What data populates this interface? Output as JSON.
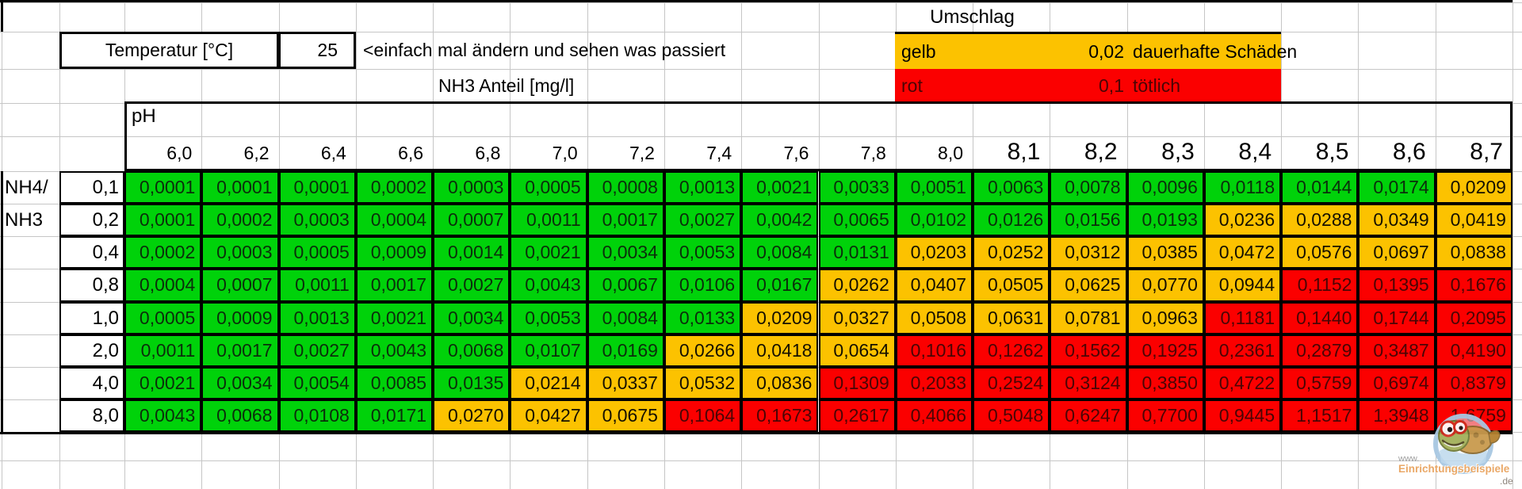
{
  "sheet": {
    "umschlag": {
      "title": "Umschlag"
    },
    "temperatur": {
      "label": "Temperatur [°C]",
      "value": "25"
    },
    "hint": "<einfach mal ändern und sehen was passiert",
    "nh3_anteil_label": "NH3 Anteil [mg/l]",
    "legend": {
      "rows": [
        {
          "name": "gelb",
          "threshold": "0,02",
          "meaning": "dauerhafte Schäden",
          "color": "#FCC200"
        },
        {
          "name": "rot",
          "threshold": "0,1",
          "meaning": "tötlich",
          "color": "#FB0000"
        }
      ]
    },
    "matrix": {
      "ph_label": "pH",
      "row_axis_label_line1": "NH4/",
      "row_axis_label_line2": "NH3",
      "ph_values": [
        "6,0",
        "6,2",
        "6,4",
        "6,6",
        "6,8",
        "7,0",
        "7,2",
        "7,4",
        "7,6",
        "7,8",
        "8,0",
        "8,1",
        "8,2",
        "8,3",
        "8,4",
        "8,5",
        "8,6",
        "8,7"
      ],
      "ph_large_from_index": 11,
      "rows": [
        {
          "label": "0,1",
          "values": [
            "0,0001",
            "0,0001",
            "0,0001",
            "0,0002",
            "0,0003",
            "0,0005",
            "0,0008",
            "0,0013",
            "0,0021",
            "0,0033",
            "0,0051",
            "0,0063",
            "0,0078",
            "0,0096",
            "0,0118",
            "0,0144",
            "0,0174",
            "0,0209"
          ],
          "colors": [
            "g",
            "g",
            "g",
            "g",
            "g",
            "g",
            "g",
            "g",
            "g",
            "g",
            "g",
            "g",
            "g",
            "g",
            "g",
            "g",
            "g",
            "y"
          ]
        },
        {
          "label": "0,2",
          "values": [
            "0,0001",
            "0,0002",
            "0,0003",
            "0,0004",
            "0,0007",
            "0,0011",
            "0,0017",
            "0,0027",
            "0,0042",
            "0,0065",
            "0,0102",
            "0,0126",
            "0,0156",
            "0,0193",
            "0,0236",
            "0,0288",
            "0,0349",
            "0,0419"
          ],
          "colors": [
            "g",
            "g",
            "g",
            "g",
            "g",
            "g",
            "g",
            "g",
            "g",
            "g",
            "g",
            "g",
            "g",
            "g",
            "y",
            "y",
            "y",
            "y"
          ]
        },
        {
          "label": "0,4",
          "values": [
            "0,0002",
            "0,0003",
            "0,0005",
            "0,0009",
            "0,0014",
            "0,0021",
            "0,0034",
            "0,0053",
            "0,0084",
            "0,0131",
            "0,0203",
            "0,0252",
            "0,0312",
            "0,0385",
            "0,0472",
            "0,0576",
            "0,0697",
            "0,0838"
          ],
          "colors": [
            "g",
            "g",
            "g",
            "g",
            "g",
            "g",
            "g",
            "g",
            "g",
            "g",
            "y",
            "y",
            "y",
            "y",
            "y",
            "y",
            "y",
            "y"
          ]
        },
        {
          "label": "0,8",
          "values": [
            "0,0004",
            "0,0007",
            "0,0011",
            "0,0017",
            "0,0027",
            "0,0043",
            "0,0067",
            "0,0106",
            "0,0167",
            "0,0262",
            "0,0407",
            "0,0505",
            "0,0625",
            "0,0770",
            "0,0944",
            "0,1152",
            "0,1395",
            "0,1676"
          ],
          "colors": [
            "g",
            "g",
            "g",
            "g",
            "g",
            "g",
            "g",
            "g",
            "g",
            "y",
            "y",
            "y",
            "y",
            "y",
            "y",
            "r",
            "r",
            "r"
          ]
        },
        {
          "label": "1,0",
          "values": [
            "0,0005",
            "0,0009",
            "0,0013",
            "0,0021",
            "0,0034",
            "0,0053",
            "0,0084",
            "0,0133",
            "0,0209",
            "0,0327",
            "0,0508",
            "0,0631",
            "0,0781",
            "0,0963",
            "0,1181",
            "0,1440",
            "0,1744",
            "0,2095"
          ],
          "colors": [
            "g",
            "g",
            "g",
            "g",
            "g",
            "g",
            "g",
            "g",
            "y",
            "y",
            "y",
            "y",
            "y",
            "y",
            "r",
            "r",
            "r",
            "r"
          ]
        },
        {
          "label": "2,0",
          "values": [
            "0,0011",
            "0,0017",
            "0,0027",
            "0,0043",
            "0,0068",
            "0,0107",
            "0,0169",
            "0,0266",
            "0,0418",
            "0,0654",
            "0,1016",
            "0,1262",
            "0,1562",
            "0,1925",
            "0,2361",
            "0,2879",
            "0,3487",
            "0,4190"
          ],
          "colors": [
            "g",
            "g",
            "g",
            "g",
            "g",
            "g",
            "g",
            "y",
            "y",
            "y",
            "r",
            "r",
            "r",
            "r",
            "r",
            "r",
            "r",
            "r"
          ]
        },
        {
          "label": "4,0",
          "values": [
            "0,0021",
            "0,0034",
            "0,0054",
            "0,0085",
            "0,0135",
            "0,0214",
            "0,0337",
            "0,0532",
            "0,0836",
            "0,1309",
            "0,2033",
            "0,2524",
            "0,3124",
            "0,3850",
            "0,4722",
            "0,5759",
            "0,6974",
            "0,8379"
          ],
          "colors": [
            "g",
            "g",
            "g",
            "g",
            "g",
            "y",
            "y",
            "y",
            "y",
            "r",
            "r",
            "r",
            "r",
            "r",
            "r",
            "r",
            "r",
            "r"
          ]
        },
        {
          "label": "8,0",
          "values": [
            "0,0043",
            "0,0068",
            "0,0108",
            "0,0171",
            "0,0270",
            "0,0427",
            "0,0675",
            "0,1064",
            "0,1673",
            "0,2617",
            "0,4066",
            "0,5048",
            "0,6247",
            "0,7700",
            "0,9445",
            "1,1517",
            "1,3948",
            "1,6759"
          ],
          "colors": [
            "g",
            "g",
            "g",
            "g",
            "y",
            "y",
            "y",
            "r",
            "r",
            "r",
            "r",
            "r",
            "r",
            "r",
            "r",
            "r",
            "r",
            "r"
          ]
        }
      ]
    }
  },
  "colors": {
    "green": "#00D20A",
    "yellow": "#FCC200",
    "red": "#FB0000"
  },
  "watermark": {
    "prefix": "www.",
    "name": "Einrichtungsbeispiele",
    "suffix": ".de"
  }
}
